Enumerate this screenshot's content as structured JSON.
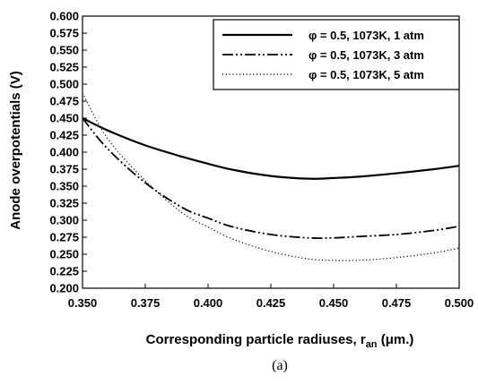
{
  "chart_data": {
    "type": "line",
    "title": "",
    "caption": "(a)",
    "xlabel": "Corresponding particle radiuses, r",
    "xlabel_sub": "an",
    "xlabel_suffix": " (μm.)",
    "ylabel": "Anode overpotentials (V)",
    "xlim": [
      0.35,
      0.5
    ],
    "ylim": [
      0.2,
      0.6
    ],
    "x_ticks": [
      "0.350",
      "0.375",
      "0.400",
      "0.425",
      "0.450",
      "0.475",
      "0.500"
    ],
    "y_ticks": [
      "0.200",
      "0.225",
      "0.250",
      "0.275",
      "0.300",
      "0.325",
      "0.350",
      "0.375",
      "0.400",
      "0.425",
      "0.450",
      "0.475",
      "0.500",
      "0.525",
      "0.550",
      "0.575",
      "0.600"
    ],
    "grid": false,
    "legend_position": "top-right",
    "series": [
      {
        "name": "φ = 0.5, 1073K, 1 atm",
        "style": "solid",
        "color": "#000000",
        "points": [
          [
            0.35,
            0.45
          ],
          [
            0.36,
            0.432
          ],
          [
            0.375,
            0.41
          ],
          [
            0.39,
            0.393
          ],
          [
            0.4,
            0.383
          ],
          [
            0.41,
            0.374
          ],
          [
            0.425,
            0.365
          ],
          [
            0.44,
            0.361
          ],
          [
            0.45,
            0.362
          ],
          [
            0.46,
            0.364
          ],
          [
            0.475,
            0.369
          ],
          [
            0.49,
            0.375
          ],
          [
            0.5,
            0.38
          ]
        ]
      },
      {
        "name": "φ = 0.5, 1073K, 3 atm",
        "style": "dash-dot-dot",
        "color": "#000000",
        "points": [
          [
            0.35,
            0.45
          ],
          [
            0.36,
            0.405
          ],
          [
            0.375,
            0.355
          ],
          [
            0.39,
            0.318
          ],
          [
            0.4,
            0.303
          ],
          [
            0.41,
            0.29
          ],
          [
            0.425,
            0.279
          ],
          [
            0.44,
            0.274
          ],
          [
            0.45,
            0.274
          ],
          [
            0.46,
            0.276
          ],
          [
            0.475,
            0.279
          ],
          [
            0.49,
            0.285
          ],
          [
            0.5,
            0.291
          ]
        ]
      },
      {
        "name": "φ = 0.5, 1073K, 5 atm",
        "style": "dotted",
        "color": "#000000",
        "points": [
          [
            0.35,
            0.487
          ],
          [
            0.36,
            0.42
          ],
          [
            0.375,
            0.358
          ],
          [
            0.39,
            0.31
          ],
          [
            0.4,
            0.29
          ],
          [
            0.41,
            0.272
          ],
          [
            0.425,
            0.254
          ],
          [
            0.44,
            0.243
          ],
          [
            0.45,
            0.241
          ],
          [
            0.46,
            0.241
          ],
          [
            0.475,
            0.245
          ],
          [
            0.49,
            0.252
          ],
          [
            0.5,
            0.259
          ]
        ]
      }
    ]
  }
}
